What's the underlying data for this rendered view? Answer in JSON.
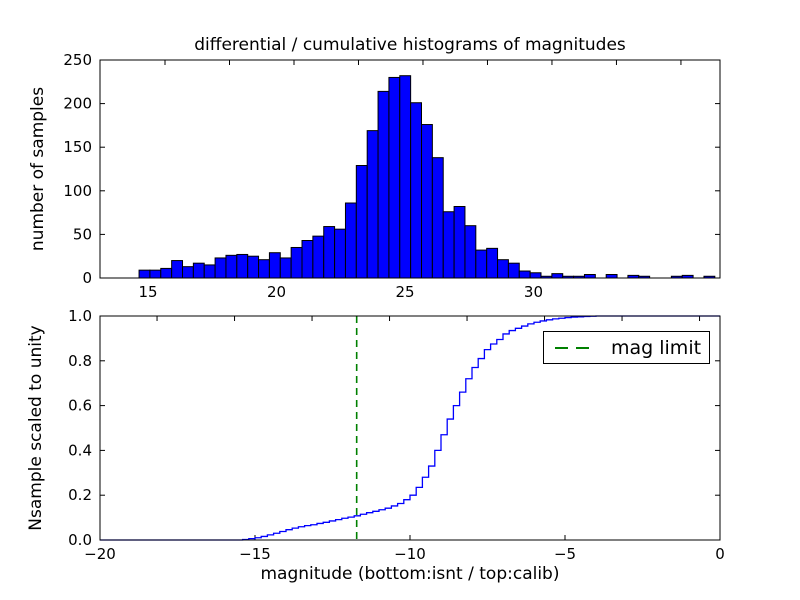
{
  "figure": {
    "title": "differential / cumulative histograms of magnitudes",
    "background": "#ffffff",
    "text_color": "#000000"
  },
  "chart_data": [
    {
      "type": "bar",
      "subtitle": "differential histogram (top panel)",
      "ylabel": "number of samples",
      "xlim": [
        13.13,
        37.26
      ],
      "ylim": [
        0,
        250
      ],
      "grid": false,
      "xtick_values": [
        15,
        20,
        25,
        30
      ],
      "xtick_labels": [
        "15",
        "20",
        "25",
        "30"
      ],
      "ytick_values": [
        0,
        50,
        100,
        150,
        200,
        250
      ],
      "ytick_labels": [
        "0",
        "50",
        "100",
        "150",
        "200",
        "250"
      ],
      "top_axis_tick_values": [
        15.66,
        18.17,
        20.68,
        23.19,
        25.7,
        28.21,
        30.72,
        33.23,
        35.74
      ],
      "bin_start": 14.65,
      "bin_width": 0.4228,
      "counts": [
        9,
        9,
        11,
        20,
        13,
        17,
        15,
        23,
        26,
        27,
        25,
        21,
        29,
        23,
        35,
        43,
        48,
        59,
        56,
        86,
        129,
        169,
        214,
        230,
        232,
        201,
        176,
        138,
        76,
        82,
        60,
        32,
        34,
        21,
        17,
        8,
        6,
        2,
        5,
        2,
        2,
        4,
        0,
        4,
        0,
        3,
        2,
        0,
        0,
        2,
        3,
        0,
        2
      ],
      "bar_fill": "#0000ff",
      "bar_edge": "#000000"
    },
    {
      "type": "line",
      "subtitle": "cumulative histogram (bottom panel)",
      "ylabel": "Nsample scaled to unity",
      "xlabel": "magnitude (bottom:isnt / top:calib)",
      "xlim": [
        -20,
        0
      ],
      "ylim": [
        0.0,
        1.0
      ],
      "grid": false,
      "line_style": "steps",
      "xtick_values": [
        -20,
        -15,
        -10,
        -5,
        0
      ],
      "xtick_labels": [
        "−20",
        "−15",
        "−10",
        "−5",
        "0"
      ],
      "ytick_values": [
        0.0,
        0.2,
        0.4,
        0.6,
        0.8,
        1.0
      ],
      "ytick_labels": [
        "0.0",
        "0.2",
        "0.4",
        "0.6",
        "0.8",
        "1.0"
      ],
      "top_axis_tick_values": [
        -18.16,
        -15.66,
        -13.16,
        -10.66,
        -8.16,
        -5.66,
        -3.16,
        -0.66
      ],
      "x_start": -20.0,
      "x_step": 0.2,
      "cumulative": [
        0,
        0,
        0,
        0,
        0,
        0,
        0,
        0,
        0,
        0,
        0,
        0,
        0,
        0,
        0,
        0,
        0,
        0,
        0,
        0,
        0,
        0,
        0,
        0.002,
        0.006,
        0.01,
        0.016,
        0.023,
        0.03,
        0.038,
        0.046,
        0.053,
        0.059,
        0.064,
        0.068,
        0.074,
        0.079,
        0.085,
        0.091,
        0.097,
        0.102,
        0.108,
        0.115,
        0.122,
        0.128,
        0.135,
        0.142,
        0.152,
        0.163,
        0.18,
        0.2,
        0.235,
        0.28,
        0.33,
        0.4,
        0.47,
        0.54,
        0.6,
        0.66,
        0.72,
        0.77,
        0.81,
        0.85,
        0.875,
        0.895,
        0.92,
        0.935,
        0.945,
        0.955,
        0.965,
        0.972,
        0.978,
        0.983,
        0.987,
        0.99,
        0.993,
        0.995,
        0.996,
        0.998,
        0.999,
        1.0,
        1.0,
        1.0,
        1.0,
        1.0,
        1.0,
        1.0,
        1.0,
        1.0,
        1.0,
        1.0,
        1.0,
        1.0,
        1.0,
        1.0,
        1.0,
        1.0,
        1.0,
        1.0,
        1.0,
        1.0
      ],
      "line_color": "#0000ff",
      "mag_limit": {
        "value": -11.72,
        "color": "#008000",
        "label": "mag limit",
        "line_style": "dashed"
      }
    }
  ]
}
